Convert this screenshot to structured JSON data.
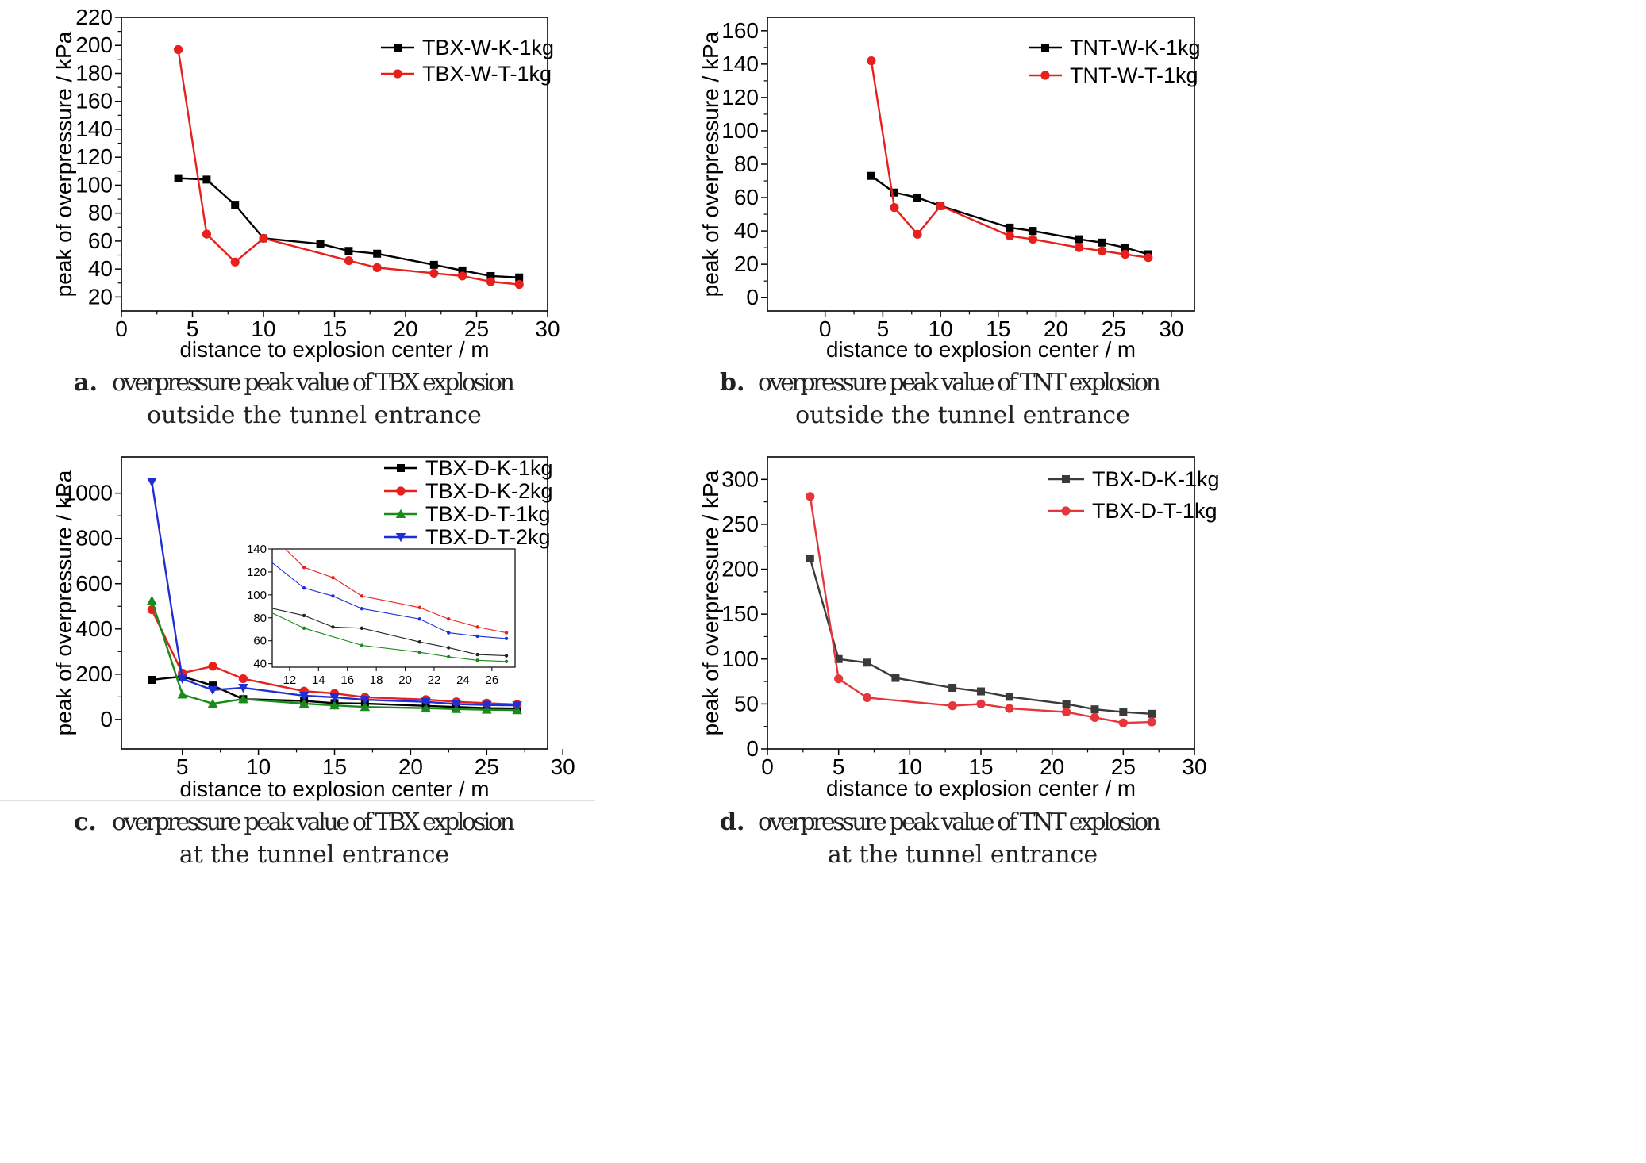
{
  "chart_data": [
    {
      "type": "line",
      "caption": {
        "letter": "a.",
        "line1": "overpressure peak value of TBX explosion",
        "line2": "outside the tunnel entrance"
      },
      "xlabel": "distance to explosion center / m",
      "ylabel": "peak of overpressure / kPa",
      "xlim": [
        0,
        30
      ],
      "ylim": [
        10,
        220
      ],
      "xticks": [
        0,
        5,
        10,
        15,
        20,
        25,
        30
      ],
      "yticks": [
        20,
        40,
        60,
        80,
        100,
        120,
        140,
        160,
        180,
        200,
        220
      ],
      "legend_position": "top-right",
      "series": [
        {
          "name": "TBX-W-K-1kg",
          "color": "#000000",
          "marker": "square",
          "x": [
            4,
            6,
            8,
            10,
            14,
            16,
            18,
            22,
            24,
            26,
            28
          ],
          "y": [
            105,
            104,
            86,
            62,
            58,
            53,
            51,
            43,
            39,
            35,
            34
          ]
        },
        {
          "name": "TBX-W-T-1kg",
          "color": "#e8201c",
          "marker": "circle",
          "x": [
            4,
            6,
            8,
            10,
            16,
            18,
            22,
            24,
            26,
            28
          ],
          "y": [
            197,
            65,
            45,
            62,
            46,
            41,
            37,
            35,
            31,
            29
          ]
        }
      ]
    },
    {
      "type": "line",
      "caption": {
        "letter": "b.",
        "line1": "overpressure peak value of TNT explosion",
        "line2": "outside the tunnel entrance"
      },
      "xlabel": "distance to explosion center / m",
      "ylabel": "peak of overpressure / kPa",
      "xlim": [
        -5,
        32
      ],
      "ylim": [
        -8,
        168
      ],
      "xticks": [
        0,
        5,
        10,
        15,
        20,
        25,
        30
      ],
      "yticks": [
        0,
        20,
        40,
        60,
        80,
        100,
        120,
        140,
        160
      ],
      "legend_position": "top-right",
      "series": [
        {
          "name": "TNT-W-K-1kg",
          "color": "#000000",
          "marker": "square",
          "x": [
            4,
            6,
            8,
            10,
            16,
            18,
            22,
            24,
            26,
            28
          ],
          "y": [
            73,
            63,
            60,
            55,
            42,
            40,
            35,
            33,
            30,
            26
          ]
        },
        {
          "name": "TNT-W-T-1kg",
          "color": "#e8201c",
          "marker": "circle",
          "x": [
            4,
            6,
            8,
            10,
            16,
            18,
            22,
            24,
            26,
            28
          ],
          "y": [
            142,
            54,
            38,
            55,
            37,
            35,
            30,
            28,
            26,
            24
          ]
        }
      ]
    },
    {
      "type": "line",
      "caption": {
        "letter": "c.",
        "line1": "overpressure peak value of TBX explosion",
        "line2": "at the tunnel entrance"
      },
      "xlabel": "distance to explosion center / m",
      "ylabel": "peak of overpressure / kPa",
      "xlim": [
        1,
        29
      ],
      "ylim": [
        -130,
        1160
      ],
      "xticks": [
        5,
        10,
        15,
        20,
        25,
        30
      ],
      "yticks": [
        0,
        200,
        400,
        600,
        800,
        1000
      ],
      "legend_position": "top-right",
      "series": [
        {
          "name": "TBX-D-K-1kg",
          "color": "#000000",
          "marker": "square",
          "x": [
            3,
            5,
            7,
            9,
            13,
            15,
            17,
            21,
            23,
            25,
            27
          ],
          "y": [
            175,
            190,
            150,
            90,
            82,
            72,
            70,
            60,
            55,
            50,
            48
          ]
        },
        {
          "name": "TBX-D-K-2kg",
          "color": "#e8201c",
          "marker": "circle",
          "x": [
            3,
            5,
            7,
            9,
            13,
            15,
            17,
            21,
            23,
            25,
            27
          ],
          "y": [
            485,
            205,
            235,
            180,
            125,
            115,
            98,
            88,
            78,
            72,
            66
          ]
        },
        {
          "name": "TBX-D-T-1kg",
          "color": "#1a8a1a",
          "marker": "triangle-up",
          "x": [
            3,
            5,
            7,
            9,
            13,
            15,
            17,
            21,
            23,
            25,
            27
          ],
          "y": [
            525,
            110,
            70,
            90,
            70,
            62,
            55,
            50,
            46,
            43,
            41
          ]
        },
        {
          "name": "TBX-D-T-2kg",
          "color": "#1f2fd6",
          "marker": "triangle-down",
          "x": [
            3,
            5,
            7,
            9,
            13,
            15,
            17,
            21,
            23,
            25,
            27
          ],
          "y": [
            1050,
            180,
            130,
            140,
            105,
            98,
            87,
            78,
            68,
            64,
            62
          ]
        }
      ],
      "inset": {
        "xlim": [
          10.8,
          27.6
        ],
        "ylim": [
          37,
          140
        ],
        "xticks": [
          12,
          14,
          16,
          18,
          20,
          22,
          24,
          26
        ],
        "yticks": [
          40,
          60,
          80,
          100,
          120,
          140
        ],
        "series": [
          {
            "color": "#222222",
            "x": [
              10.5,
              13,
              15,
              17,
              21,
              23,
              25,
              27
            ],
            "y": [
              89,
              82,
              72,
              71,
              59,
              54,
              48,
              47
            ]
          },
          {
            "color": "#e8201c",
            "x": [
              10.5,
              13,
              15,
              17,
              21,
              23,
              25,
              27
            ],
            "y": [
              155,
              124,
              115,
              99,
              89,
              79,
              72,
              67
            ]
          },
          {
            "color": "#1a8a1a",
            "x": [
              10.5,
              13,
              17,
              21,
              23,
              25,
              27
            ],
            "y": [
              86,
              71,
              56,
              50,
              46,
              43,
              42
            ]
          },
          {
            "color": "#1f2fd6",
            "x": [
              10.5,
              13,
              15,
              17,
              21,
              23,
              25,
              27
            ],
            "y": [
              131,
              106,
              99,
              88,
              79,
              67,
              64,
              62
            ]
          }
        ]
      }
    },
    {
      "type": "line",
      "caption": {
        "letter": "d.",
        "line1": "overpressure peak value of TNT explosion",
        "line2": "at the tunnel entrance"
      },
      "xlabel": "distance to explosion center / m",
      "ylabel": "peak of overpressure / kPa",
      "xlim": [
        0,
        30
      ],
      "ylim": [
        0,
        325
      ],
      "xticks": [
        0,
        5,
        10,
        15,
        20,
        25,
        30
      ],
      "yticks": [
        0,
        50,
        100,
        150,
        200,
        250,
        300
      ],
      "legend_position": "top-right",
      "series": [
        {
          "name": "TBX-D-K-1kg",
          "color": "#3a3a3a",
          "marker": "square",
          "x": [
            3,
            5,
            7,
            9,
            13,
            15,
            17,
            21,
            23,
            25,
            27
          ],
          "y": [
            212,
            100,
            96,
            79,
            68,
            64,
            58,
            50,
            44,
            41,
            39
          ]
        },
        {
          "name": "TBX-D-T-1kg",
          "color": "#e5363b",
          "marker": "circle",
          "x": [
            3,
            5,
            7,
            13,
            15,
            17,
            21,
            23,
            25,
            27
          ],
          "y": [
            281,
            78,
            57,
            48,
            50,
            45,
            41,
            35,
            29,
            30
          ]
        }
      ]
    }
  ]
}
